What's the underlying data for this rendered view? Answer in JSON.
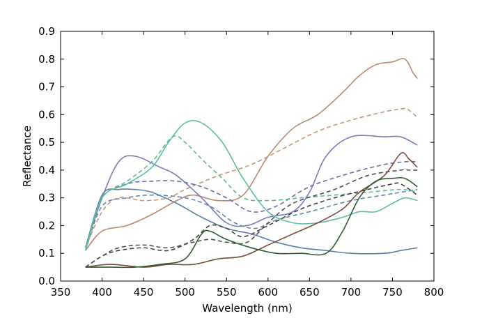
{
  "chart_data": {
    "type": "line",
    "title": "",
    "xlabel": "Wavelength (nm)",
    "ylabel": "Reflectance",
    "xlim": [
      350,
      800
    ],
    "ylim": [
      0.0,
      0.9
    ],
    "x_ticks": [
      350,
      400,
      450,
      500,
      550,
      600,
      650,
      700,
      750,
      800
    ],
    "x_tick_labels": [
      "350",
      "400",
      "450",
      "500",
      "550",
      "600",
      "650",
      "700",
      "750",
      "800"
    ],
    "y_ticks": [
      0.0,
      0.1,
      0.2,
      0.3,
      0.4,
      0.5,
      0.6,
      0.7,
      0.8,
      0.9
    ],
    "y_tick_labels": [
      "0.0",
      "0.1",
      "0.2",
      "0.3",
      "0.4",
      "0.5",
      "0.6",
      "0.7",
      "0.8",
      "0.9"
    ],
    "grid": false,
    "legend": "none",
    "series": [
      {
        "color": "#b98a6f",
        "style": "solid",
        "points": [
          [
            380,
            0.11
          ],
          [
            400,
            0.18
          ],
          [
            430,
            0.2
          ],
          [
            460,
            0.24
          ],
          [
            490,
            0.29
          ],
          [
            510,
            0.31
          ],
          [
            540,
            0.29
          ],
          [
            570,
            0.31
          ],
          [
            600,
            0.45
          ],
          [
            630,
            0.55
          ],
          [
            660,
            0.6
          ],
          [
            690,
            0.68
          ],
          [
            710,
            0.74
          ],
          [
            730,
            0.78
          ],
          [
            750,
            0.79
          ],
          [
            765,
            0.8
          ],
          [
            775,
            0.75
          ],
          [
            780,
            0.73
          ]
        ]
      },
      {
        "color": "#c9947a",
        "style": "dashed",
        "points": [
          [
            380,
            0.12
          ],
          [
            400,
            0.25
          ],
          [
            420,
            0.3
          ],
          [
            450,
            0.29
          ],
          [
            480,
            0.3
          ],
          [
            500,
            0.33
          ],
          [
            540,
            0.38
          ],
          [
            580,
            0.42
          ],
          [
            620,
            0.48
          ],
          [
            660,
            0.54
          ],
          [
            700,
            0.58
          ],
          [
            740,
            0.61
          ],
          [
            760,
            0.62
          ],
          [
            768,
            0.62
          ],
          [
            780,
            0.59
          ]
        ]
      },
      {
        "color": "#7b7bb8",
        "style": "solid",
        "points": [
          [
            380,
            0.12
          ],
          [
            400,
            0.3
          ],
          [
            420,
            0.43
          ],
          [
            440,
            0.45
          ],
          [
            470,
            0.41
          ],
          [
            490,
            0.38
          ],
          [
            520,
            0.3
          ],
          [
            550,
            0.21
          ],
          [
            575,
            0.2
          ],
          [
            600,
            0.23
          ],
          [
            630,
            0.25
          ],
          [
            650,
            0.32
          ],
          [
            670,
            0.45
          ],
          [
            700,
            0.52
          ],
          [
            740,
            0.52
          ],
          [
            760,
            0.52
          ],
          [
            780,
            0.49
          ]
        ]
      },
      {
        "color": "#6a6aaa",
        "style": "dashed",
        "points": [
          [
            380,
            0.12
          ],
          [
            400,
            0.3
          ],
          [
            430,
            0.35
          ],
          [
            460,
            0.36
          ],
          [
            490,
            0.36
          ],
          [
            520,
            0.34
          ],
          [
            550,
            0.3
          ],
          [
            580,
            0.25
          ],
          [
            610,
            0.27
          ],
          [
            650,
            0.34
          ],
          [
            700,
            0.39
          ],
          [
            740,
            0.42
          ],
          [
            765,
            0.43
          ],
          [
            780,
            0.43
          ]
        ]
      },
      {
        "color": "#5e85ad",
        "style": "dashed",
        "points": [
          [
            380,
            0.11
          ],
          [
            400,
            0.27
          ],
          [
            430,
            0.3
          ],
          [
            460,
            0.31
          ],
          [
            500,
            0.3
          ],
          [
            530,
            0.27
          ],
          [
            560,
            0.21
          ],
          [
            585,
            0.19
          ],
          [
            610,
            0.22
          ],
          [
            650,
            0.25
          ],
          [
            700,
            0.29
          ],
          [
            740,
            0.31
          ],
          [
            760,
            0.32
          ],
          [
            780,
            0.33
          ]
        ]
      },
      {
        "color": "#5a7fa8",
        "style": "solid",
        "points": [
          [
            380,
            0.12
          ],
          [
            400,
            0.31
          ],
          [
            420,
            0.33
          ],
          [
            440,
            0.33
          ],
          [
            460,
            0.32
          ],
          [
            490,
            0.28
          ],
          [
            520,
            0.23
          ],
          [
            550,
            0.19
          ],
          [
            580,
            0.17
          ],
          [
            610,
            0.14
          ],
          [
            640,
            0.12
          ],
          [
            670,
            0.11
          ],
          [
            700,
            0.1
          ],
          [
            740,
            0.1
          ],
          [
            760,
            0.11
          ],
          [
            780,
            0.12
          ]
        ]
      },
      {
        "color": "#5cbf9d",
        "style": "solid",
        "points": [
          [
            380,
            0.11
          ],
          [
            400,
            0.3
          ],
          [
            430,
            0.35
          ],
          [
            460,
            0.41
          ],
          [
            480,
            0.5
          ],
          [
            500,
            0.57
          ],
          [
            520,
            0.57
          ],
          [
            545,
            0.5
          ],
          [
            570,
            0.37
          ],
          [
            600,
            0.25
          ],
          [
            630,
            0.21
          ],
          [
            660,
            0.21
          ],
          [
            690,
            0.23
          ],
          [
            710,
            0.25
          ],
          [
            730,
            0.25
          ],
          [
            750,
            0.28
          ],
          [
            765,
            0.3
          ],
          [
            780,
            0.29
          ]
        ]
      },
      {
        "color": "#5cb89a",
        "style": "dashed",
        "points": [
          [
            380,
            0.12
          ],
          [
            400,
            0.3
          ],
          [
            430,
            0.36
          ],
          [
            460,
            0.43
          ],
          [
            485,
            0.52
          ],
          [
            500,
            0.5
          ],
          [
            520,
            0.44
          ],
          [
            545,
            0.37
          ],
          [
            570,
            0.3
          ],
          [
            600,
            0.29
          ],
          [
            640,
            0.3
          ],
          [
            680,
            0.31
          ],
          [
            720,
            0.32
          ],
          [
            760,
            0.33
          ],
          [
            780,
            0.32
          ]
        ]
      },
      {
        "color": "#3f3f3f",
        "style": "dashed",
        "points": [
          [
            380,
            0.05
          ],
          [
            400,
            0.09
          ],
          [
            420,
            0.11
          ],
          [
            450,
            0.12
          ],
          [
            480,
            0.11
          ],
          [
            510,
            0.15
          ],
          [
            530,
            0.2
          ],
          [
            550,
            0.19
          ],
          [
            570,
            0.16
          ],
          [
            600,
            0.2
          ],
          [
            640,
            0.26
          ],
          [
            680,
            0.3
          ],
          [
            720,
            0.33
          ],
          [
            750,
            0.35
          ],
          [
            760,
            0.35
          ],
          [
            780,
            0.31
          ]
        ]
      },
      {
        "color": "#4f4f4f",
        "style": "dashed",
        "points": [
          [
            380,
            0.05
          ],
          [
            400,
            0.09
          ],
          [
            420,
            0.12
          ],
          [
            450,
            0.13
          ],
          [
            480,
            0.12
          ],
          [
            510,
            0.14
          ],
          [
            530,
            0.15
          ],
          [
            550,
            0.14
          ],
          [
            575,
            0.14
          ],
          [
            600,
            0.21
          ],
          [
            630,
            0.28
          ],
          [
            680,
            0.33
          ],
          [
            720,
            0.38
          ],
          [
            760,
            0.4
          ],
          [
            770,
            0.4
          ],
          [
            780,
            0.4
          ]
        ]
      },
      {
        "color": "#7a4a3a",
        "style": "solid",
        "points": [
          [
            380,
            0.05
          ],
          [
            410,
            0.06
          ],
          [
            450,
            0.05
          ],
          [
            480,
            0.06
          ],
          [
            510,
            0.06
          ],
          [
            540,
            0.08
          ],
          [
            570,
            0.09
          ],
          [
            600,
            0.13
          ],
          [
            630,
            0.17
          ],
          [
            660,
            0.21
          ],
          [
            690,
            0.26
          ],
          [
            710,
            0.32
          ],
          [
            740,
            0.38
          ],
          [
            760,
            0.46
          ],
          [
            770,
            0.44
          ],
          [
            780,
            0.41
          ]
        ]
      },
      {
        "color": "#2f5a2f",
        "style": "solid",
        "points": [
          [
            380,
            0.05
          ],
          [
            410,
            0.05
          ],
          [
            440,
            0.05
          ],
          [
            470,
            0.06
          ],
          [
            500,
            0.08
          ],
          [
            520,
            0.17
          ],
          [
            530,
            0.18
          ],
          [
            550,
            0.15
          ],
          [
            580,
            0.12
          ],
          [
            610,
            0.1
          ],
          [
            640,
            0.1
          ],
          [
            670,
            0.1
          ],
          [
            690,
            0.18
          ],
          [
            710,
            0.3
          ],
          [
            730,
            0.36
          ],
          [
            750,
            0.37
          ],
          [
            765,
            0.37
          ],
          [
            780,
            0.34
          ]
        ]
      }
    ]
  }
}
